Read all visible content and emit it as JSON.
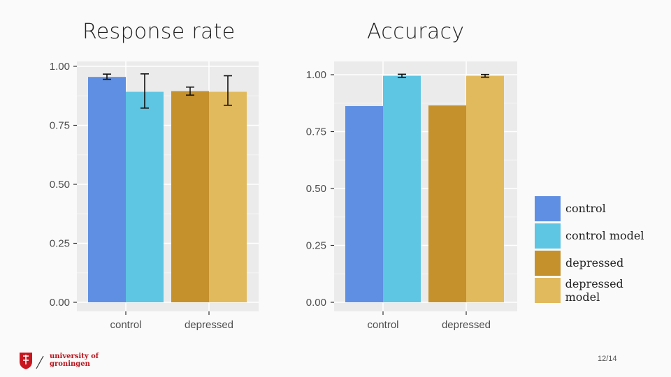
{
  "colors": {
    "panel_bg": "#ebebeb",
    "grid": "#ffffff",
    "control": "#5e8fe2",
    "control model": "#5ec5e2",
    "depressed": "#c5912c",
    "depressed model": "#e2ba5e"
  },
  "chart_data": [
    {
      "type": "bar",
      "title": "Response rate",
      "categories": [
        "control",
        "depressed"
      ],
      "series": [
        {
          "name": "control",
          "category": "control",
          "value": 0.955,
          "error": [
            0.945,
            0.967
          ]
        },
        {
          "name": "control model",
          "category": "control",
          "value": 0.892,
          "error": [
            0.823,
            0.968
          ]
        },
        {
          "name": "depressed",
          "category": "depressed",
          "value": 0.895,
          "error": [
            0.878,
            0.912
          ]
        },
        {
          "name": "depressed model",
          "category": "depressed",
          "value": 0.892,
          "error": [
            0.835,
            0.96
          ]
        }
      ],
      "yticks": [
        "0.00",
        "0.25",
        "0.50",
        "0.75",
        "1.00"
      ],
      "ylim": [
        0,
        1.03
      ],
      "xlabel": "",
      "ylabel": ""
    },
    {
      "type": "bar",
      "title": "Accuracy",
      "categories": [
        "control",
        "depressed"
      ],
      "series": [
        {
          "name": "control",
          "category": "control",
          "value": 0.862,
          "error": null
        },
        {
          "name": "control model",
          "category": "control",
          "value": 0.995,
          "error": [
            0.988,
            1.002
          ]
        },
        {
          "name": "depressed",
          "category": "depressed",
          "value": 0.865,
          "error": null
        },
        {
          "name": "depressed model",
          "category": "depressed",
          "value": 0.995,
          "error": [
            0.989,
            1.001
          ]
        }
      ],
      "yticks": [
        "0.00",
        "0.25",
        "0.50",
        "0.75",
        "1.00"
      ],
      "ylim": [
        0,
        1.05
      ],
      "xlabel": "",
      "ylabel": ""
    }
  ],
  "legend": {
    "items": [
      {
        "label": "control",
        "color": "#5e8fe2"
      },
      {
        "label": "control model",
        "color": "#5ec5e2"
      },
      {
        "label": "depressed",
        "color": "#c5912c"
      },
      {
        "label": "depressed model",
        "color": "#e2ba5e"
      }
    ]
  },
  "footer": {
    "logo_line1": "university of",
    "logo_line2": "groningen",
    "page": "12/14"
  }
}
